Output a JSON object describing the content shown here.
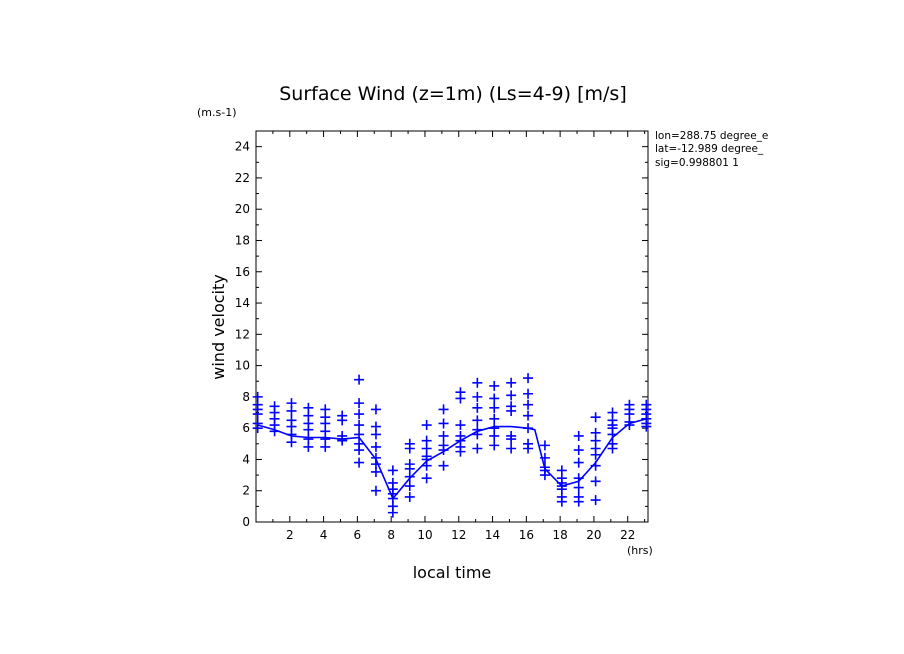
{
  "chart_data": {
    "type": "scatter",
    "title": "Surface Wind (z=1m) (Ls=4-9) [m/s]",
    "xlabel": "local time",
    "ylabel": "wind velocity",
    "x_unit": "(hrs)",
    "y_unit": "(m.s-1)",
    "xlim": [
      0,
      23.2
    ],
    "ylim": [
      0,
      25
    ],
    "xticks": [
      "2",
      "4",
      "6",
      "8",
      "10",
      "12",
      "14",
      "16",
      "18",
      "20",
      "22"
    ],
    "yticks": [
      "0",
      "2",
      "4",
      "6",
      "8",
      "10",
      "12",
      "14",
      "16",
      "18",
      "20",
      "22",
      "24"
    ],
    "grid": false,
    "info": [
      "lon=288.75 degree_e",
      "lat=-12.989 degree_",
      "sig=0.998801 1"
    ],
    "colors": {
      "series": "#0000ff",
      "axes": "#000000"
    },
    "series": [
      {
        "kind": "line",
        "x": [
          0.1,
          1.1,
          2.1,
          3.1,
          4.1,
          5.1,
          6.1,
          7.1,
          8.1,
          9.1,
          10.1,
          11.1,
          12.1,
          13.1,
          14.1,
          15.1,
          16.1,
          16.5,
          17.1,
          18.1,
          19.1,
          20.1,
          21.1,
          22.1,
          23.1
        ],
        "y": [
          6.2,
          5.9,
          5.5,
          5.4,
          5.4,
          5.3,
          5.4,
          4.0,
          1.5,
          2.8,
          3.9,
          4.5,
          5.2,
          5.8,
          6.1,
          6.1,
          6.0,
          5.9,
          3.4,
          2.3,
          2.6,
          3.8,
          5.4,
          6.3,
          6.6
        ]
      },
      {
        "kind": "points",
        "points": [
          [
            0.1,
            8.0
          ],
          [
            0.1,
            7.5
          ],
          [
            0.1,
            7.2
          ],
          [
            0.1,
            6.9
          ],
          [
            0.1,
            6.3
          ],
          [
            0.1,
            6.0
          ],
          [
            1.1,
            7.4
          ],
          [
            1.1,
            7.0
          ],
          [
            1.1,
            6.6
          ],
          [
            1.1,
            6.2
          ],
          [
            1.1,
            5.8
          ],
          [
            2.1,
            7.6
          ],
          [
            2.1,
            7.1
          ],
          [
            2.1,
            6.5
          ],
          [
            2.1,
            6.1
          ],
          [
            2.1,
            5.6
          ],
          [
            2.1,
            5.1
          ],
          [
            3.1,
            7.3
          ],
          [
            3.1,
            6.8
          ],
          [
            3.1,
            6.3
          ],
          [
            3.1,
            5.9
          ],
          [
            3.1,
            5.3
          ],
          [
            3.1,
            4.8
          ],
          [
            4.1,
            7.2
          ],
          [
            4.1,
            6.7
          ],
          [
            4.1,
            6.3
          ],
          [
            4.1,
            5.8
          ],
          [
            4.1,
            5.3
          ],
          [
            4.1,
            4.8
          ],
          [
            5.1,
            6.8
          ],
          [
            5.1,
            6.5
          ],
          [
            5.1,
            5.5
          ],
          [
            5.1,
            5.3
          ],
          [
            5.1,
            5.2
          ],
          [
            6.1,
            9.1
          ],
          [
            6.1,
            7.6
          ],
          [
            6.1,
            6.9
          ],
          [
            6.1,
            6.2
          ],
          [
            6.1,
            5.6
          ],
          [
            6.1,
            5.0
          ],
          [
            6.1,
            4.6
          ],
          [
            6.1,
            3.8
          ],
          [
            7.1,
            7.2
          ],
          [
            7.1,
            6.1
          ],
          [
            7.1,
            5.6
          ],
          [
            7.1,
            4.8
          ],
          [
            7.1,
            4.1
          ],
          [
            7.1,
            3.7
          ],
          [
            7.1,
            3.2
          ],
          [
            7.1,
            2.0
          ],
          [
            8.1,
            3.3
          ],
          [
            8.1,
            2.5
          ],
          [
            8.1,
            2.1
          ],
          [
            8.1,
            1.8
          ],
          [
            8.1,
            1.5
          ],
          [
            8.1,
            1.0
          ],
          [
            8.1,
            0.6
          ],
          [
            9.1,
            5.0
          ],
          [
            9.1,
            4.7
          ],
          [
            9.1,
            3.7
          ],
          [
            9.1,
            3.4
          ],
          [
            9.1,
            2.9
          ],
          [
            9.1,
            2.3
          ],
          [
            9.1,
            1.6
          ],
          [
            10.1,
            6.2
          ],
          [
            10.1,
            5.2
          ],
          [
            10.1,
            4.7
          ],
          [
            10.1,
            4.2
          ],
          [
            10.1,
            4.0
          ],
          [
            10.1,
            3.6
          ],
          [
            10.1,
            2.8
          ],
          [
            11.1,
            7.2
          ],
          [
            11.1,
            6.3
          ],
          [
            11.1,
            5.5
          ],
          [
            11.1,
            4.9
          ],
          [
            11.1,
            4.6
          ],
          [
            11.1,
            3.6
          ],
          [
            12.1,
            8.3
          ],
          [
            12.1,
            7.9
          ],
          [
            12.1,
            6.2
          ],
          [
            12.1,
            5.5
          ],
          [
            12.1,
            5.2
          ],
          [
            12.1,
            4.8
          ],
          [
            12.1,
            4.5
          ],
          [
            13.1,
            8.9
          ],
          [
            13.1,
            8.0
          ],
          [
            13.1,
            7.3
          ],
          [
            13.1,
            6.5
          ],
          [
            13.1,
            5.9
          ],
          [
            13.1,
            5.6
          ],
          [
            13.1,
            4.7
          ],
          [
            14.1,
            8.7
          ],
          [
            14.1,
            7.9
          ],
          [
            14.1,
            7.3
          ],
          [
            14.1,
            6.6
          ],
          [
            14.1,
            6.0
          ],
          [
            14.1,
            5.5
          ],
          [
            14.1,
            4.9
          ],
          [
            15.1,
            8.9
          ],
          [
            15.1,
            8.1
          ],
          [
            15.1,
            7.4
          ],
          [
            15.1,
            7.1
          ],
          [
            15.1,
            5.5
          ],
          [
            15.1,
            5.3
          ],
          [
            15.1,
            4.7
          ],
          [
            16.1,
            9.2
          ],
          [
            16.1,
            8.2
          ],
          [
            16.1,
            7.5
          ],
          [
            16.1,
            6.8
          ],
          [
            16.1,
            6.0
          ],
          [
            16.1,
            5.0
          ],
          [
            16.1,
            4.7
          ],
          [
            17.1,
            4.9
          ],
          [
            17.1,
            4.1
          ],
          [
            17.1,
            3.5
          ],
          [
            17.1,
            3.3
          ],
          [
            17.1,
            3.0
          ],
          [
            18.1,
            3.3
          ],
          [
            18.1,
            2.8
          ],
          [
            18.1,
            2.5
          ],
          [
            18.1,
            2.3
          ],
          [
            18.1,
            2.1
          ],
          [
            18.1,
            1.6
          ],
          [
            18.1,
            1.3
          ],
          [
            19.1,
            5.5
          ],
          [
            19.1,
            4.6
          ],
          [
            19.1,
            3.8
          ],
          [
            19.1,
            2.8
          ],
          [
            19.1,
            2.2
          ],
          [
            19.1,
            1.6
          ],
          [
            19.1,
            1.3
          ],
          [
            20.1,
            6.7
          ],
          [
            20.1,
            5.7
          ],
          [
            20.1,
            5.2
          ],
          [
            20.1,
            4.7
          ],
          [
            20.1,
            4.3
          ],
          [
            20.1,
            3.6
          ],
          [
            20.1,
            2.6
          ],
          [
            20.1,
            1.4
          ],
          [
            21.1,
            7.0
          ],
          [
            21.1,
            6.5
          ],
          [
            21.1,
            6.2
          ],
          [
            21.1,
            6.0
          ],
          [
            21.1,
            5.6
          ],
          [
            21.1,
            5.0
          ],
          [
            21.1,
            4.7
          ],
          [
            22.1,
            7.5
          ],
          [
            22.1,
            7.2
          ],
          [
            22.1,
            6.9
          ],
          [
            22.1,
            6.4
          ],
          [
            22.1,
            6.2
          ],
          [
            23.1,
            7.5
          ],
          [
            23.1,
            7.2
          ],
          [
            23.1,
            6.9
          ],
          [
            23.1,
            6.6
          ],
          [
            23.1,
            6.3
          ],
          [
            23.1,
            6.1
          ]
        ]
      }
    ]
  }
}
